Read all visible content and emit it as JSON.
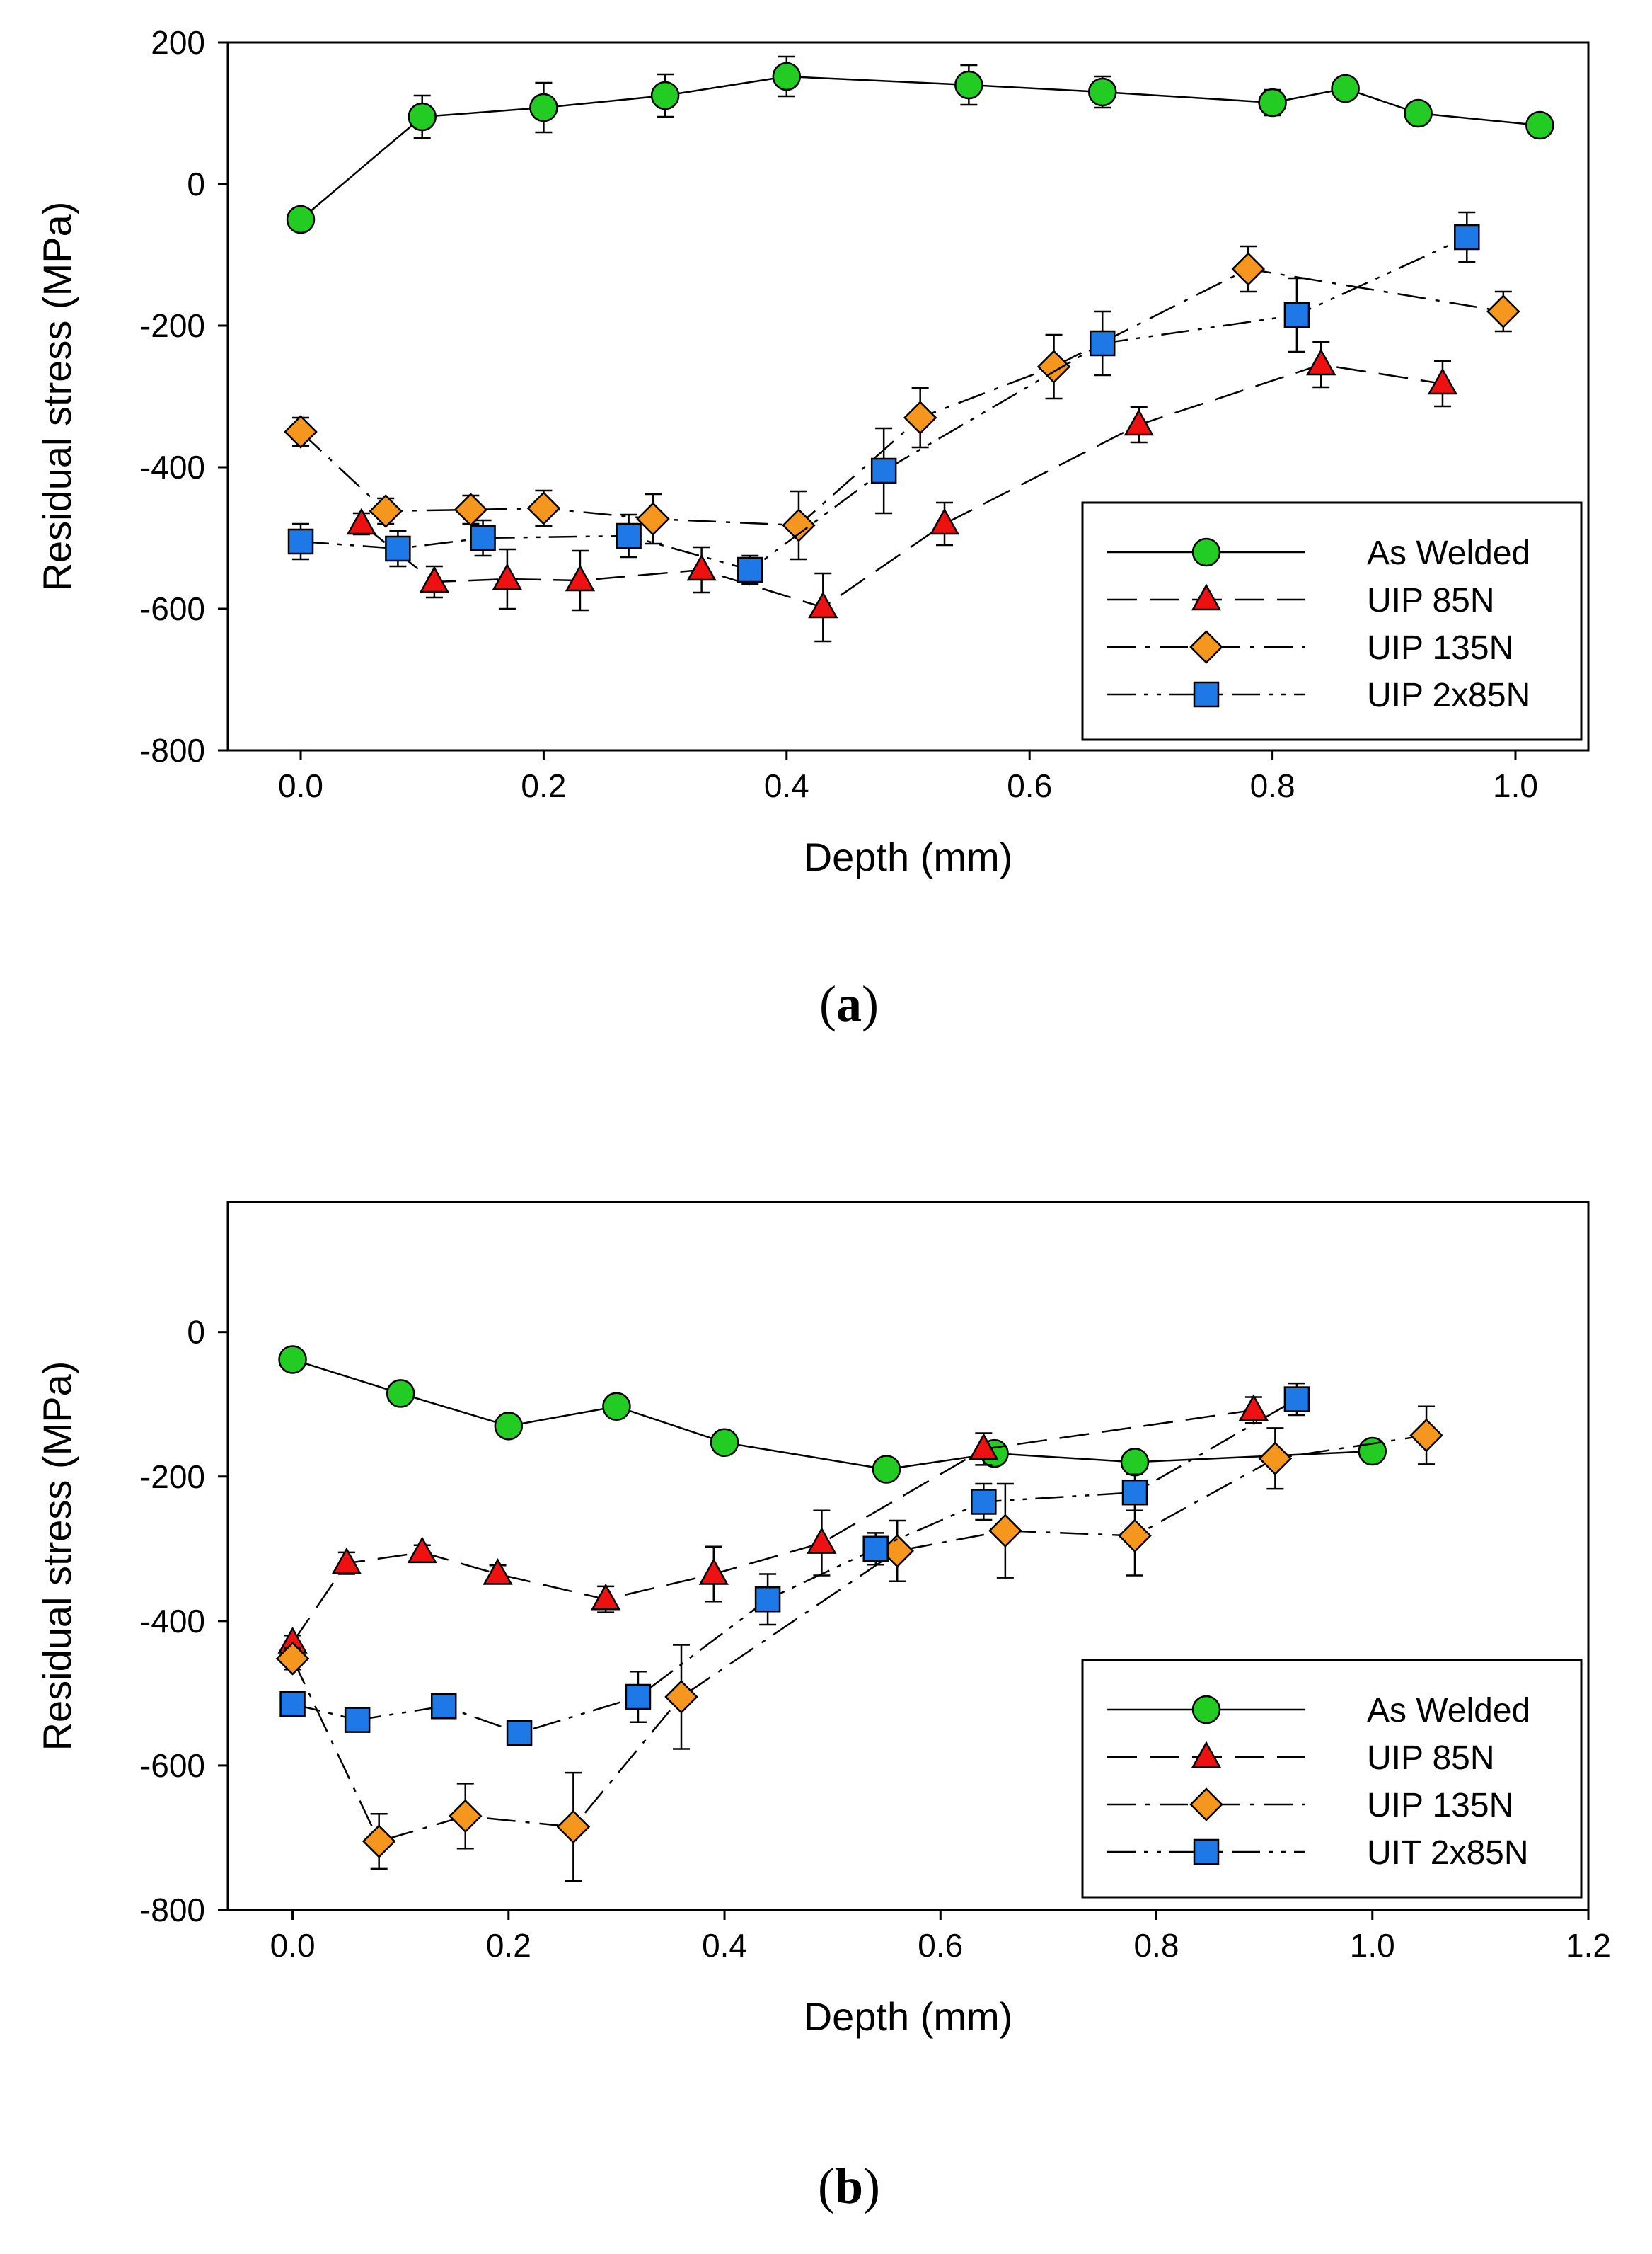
{
  "chart_data": [
    {
      "type": "line",
      "panel": "a",
      "caption_letter": "a",
      "xlabel": "Depth (mm)",
      "ylabel": "Residual stress (MPa)",
      "xlim": [
        -0.06,
        1.06
      ],
      "ylim": [
        -800,
        200
      ],
      "xticks": [
        "0.0",
        "0.2",
        "0.4",
        "0.6",
        "0.8",
        "1.0"
      ],
      "yticks": [
        "200",
        "0",
        "-200",
        "-400",
        "-600",
        "-800"
      ],
      "legend_position": "bottom-right",
      "series": [
        {
          "name": "As Welded",
          "marker": "circle",
          "color": "#22cc22",
          "line_style": "solid",
          "x": [
            0.0,
            0.1,
            0.2,
            0.3,
            0.4,
            0.55,
            0.66,
            0.8,
            0.86,
            0.92,
            1.02
          ],
          "y": [
            -50,
            95,
            108,
            125,
            152,
            140,
            130,
            115,
            135,
            100,
            83
          ],
          "err": [
            0,
            30,
            35,
            30,
            28,
            28,
            22,
            18,
            15,
            12,
            12
          ]
        },
        {
          "name": "UIP 85N",
          "marker": "triangle",
          "color": "#ee1111",
          "line_style": "dash",
          "x": [
            0.05,
            0.11,
            0.17,
            0.23,
            0.33,
            0.43,
            0.53,
            0.69,
            0.84,
            0.94
          ],
          "y": [
            -480,
            -562,
            -558,
            -560,
            -545,
            -598,
            -480,
            -340,
            -255,
            -282
          ],
          "err": [
            15,
            22,
            42,
            42,
            32,
            48,
            30,
            25,
            32,
            32
          ]
        },
        {
          "name": "UIP 135N",
          "marker": "diamond",
          "color": "#f5961e",
          "line_style": "dashdot",
          "x": [
            0.0,
            0.07,
            0.14,
            0.2,
            0.29,
            0.41,
            0.51,
            0.62,
            0.78,
            0.99
          ],
          "y": [
            -350,
            -462,
            -460,
            -458,
            -473,
            -482,
            -330,
            -258,
            -120,
            -180
          ],
          "err": [
            20,
            18,
            20,
            25,
            35,
            48,
            42,
            45,
            32,
            28
          ]
        },
        {
          "name": "UIP 2x85N",
          "marker": "square",
          "color": "#1e78e6",
          "line_style": "dashdotdot",
          "x": [
            0.0,
            0.08,
            0.15,
            0.27,
            0.37,
            0.48,
            0.66,
            0.82,
            0.96
          ],
          "y": [
            -505,
            -515,
            -500,
            -497,
            -545,
            -405,
            -225,
            -185,
            -75
          ],
          "err": [
            25,
            25,
            25,
            30,
            20,
            60,
            45,
            52,
            35
          ]
        }
      ]
    },
    {
      "type": "line",
      "panel": "b",
      "caption_letter": "b",
      "xlabel": "Depth (mm)",
      "ylabel": "Residual stress (MPa)",
      "xlim": [
        -0.06,
        1.2
      ],
      "ylim": [
        -800,
        180
      ],
      "xticks": [
        "0.0",
        "0.2",
        "0.4",
        "0.6",
        "0.8",
        "1.0",
        "1.2"
      ],
      "yticks": [
        "0",
        "-200",
        "-400",
        "-600",
        "-800"
      ],
      "legend_position": "bottom-right",
      "series": [
        {
          "name": "As Welded",
          "marker": "circle",
          "color": "#22cc22",
          "line_style": "solid",
          "x": [
            0.0,
            0.1,
            0.2,
            0.3,
            0.4,
            0.55,
            0.65,
            0.78,
            1.0
          ],
          "y": [
            -38,
            -85,
            -130,
            -103,
            -153,
            -190,
            -168,
            -180,
            -165
          ],
          "err": [
            0,
            8,
            8,
            8,
            8,
            10,
            12,
            10,
            8
          ]
        },
        {
          "name": "UIP 85N",
          "marker": "triangle",
          "color": "#ee1111",
          "line_style": "dash",
          "x": [
            0.0,
            0.05,
            0.12,
            0.19,
            0.29,
            0.39,
            0.49,
            0.64,
            0.89
          ],
          "y": [
            -430,
            -320,
            -305,
            -335,
            -370,
            -335,
            -292,
            -162,
            -108
          ],
          "err": [
            10,
            15,
            10,
            12,
            18,
            38,
            45,
            22,
            18
          ]
        },
        {
          "name": "UIP 135N",
          "marker": "diamond",
          "color": "#f5961e",
          "line_style": "dashdot",
          "x": [
            0.0,
            0.08,
            0.16,
            0.26,
            0.36,
            0.56,
            0.66,
            0.78,
            0.91,
            1.05
          ],
          "y": [
            -452,
            -705,
            -670,
            -685,
            -505,
            -303,
            -275,
            -282,
            -175,
            -143
          ],
          "err": [
            15,
            38,
            45,
            75,
            72,
            42,
            65,
            55,
            42,
            40
          ]
        },
        {
          "name": "UIT 2x85N",
          "marker": "square",
          "color": "#1e78e6",
          "line_style": "dashdotdot",
          "x": [
            0.0,
            0.06,
            0.14,
            0.21,
            0.32,
            0.44,
            0.54,
            0.64,
            0.78,
            0.93
          ],
          "y": [
            -515,
            -537,
            -518,
            -555,
            -505,
            -370,
            -300,
            -235,
            -222,
            -93
          ],
          "err": [
            12,
            15,
            12,
            12,
            35,
            35,
            22,
            25,
            25,
            22
          ]
        }
      ]
    }
  ]
}
